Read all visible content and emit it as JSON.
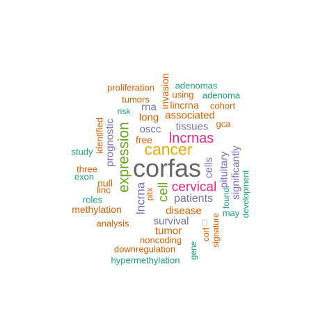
{
  "words": [
    {
      "text": "corfas",
      "color": "#666666"
    },
    {
      "text": "cancer",
      "color": "#e6ab02"
    },
    {
      "text": "lncrnas",
      "color": "#e7298a"
    },
    {
      "text": "cervical",
      "color": "#e7298a"
    },
    {
      "text": "expression",
      "color": "#66a61e"
    },
    {
      "text": "cell",
      "color": "#66a61e"
    },
    {
      "text": "lncrna",
      "color": "#7570b3"
    },
    {
      "text": "patients",
      "color": "#7570b3"
    },
    {
      "text": "survival",
      "color": "#7570b3"
    },
    {
      "text": "cells",
      "color": "#7570b3"
    },
    {
      "text": "pituitary",
      "color": "#7570b3"
    },
    {
      "text": "significantly",
      "color": "#7570b3"
    },
    {
      "text": "prognostic",
      "color": "#7570b3"
    },
    {
      "text": "tissues",
      "color": "#7570b3"
    },
    {
      "text": "oscc",
      "color": "#7570b3"
    },
    {
      "text": "rna",
      "color": "#7570b3"
    },
    {
      "text": "invasion",
      "color": "#d95f02"
    },
    {
      "text": "associated",
      "color": "#d95f02"
    },
    {
      "text": "disease",
      "color": "#d95f02"
    },
    {
      "text": "tumor",
      "color": "#d95f02"
    },
    {
      "text": "long",
      "color": "#d95f02"
    },
    {
      "text": "free",
      "color": "#d95f02"
    },
    {
      "text": "gca",
      "color": "#d95f02"
    },
    {
      "text": "lincrna",
      "color": "#d95f02"
    },
    {
      "text": "cohort",
      "color": "#d95f02"
    },
    {
      "text": "using",
      "color": "#d95f02"
    },
    {
      "text": "tumors",
      "color": "#d95f02"
    },
    {
      "text": "proliferation",
      "color": "#d95f02"
    },
    {
      "text": "identified",
      "color": "#d95f02"
    },
    {
      "text": "null",
      "color": "#d95f02"
    },
    {
      "text": "linc",
      "color": "#d95f02"
    },
    {
      "text": "three",
      "color": "#d95f02"
    },
    {
      "text": "methylation",
      "color": "#d95f02"
    },
    {
      "text": "analysis",
      "color": "#d95f02"
    },
    {
      "text": "noncoding",
      "color": "#d95f02"
    },
    {
      "text": "downregulation",
      "color": "#d95f02"
    },
    {
      "text": "pitx",
      "color": "#d95f02"
    },
    {
      "text": "signature",
      "color": "#d95f02"
    },
    {
      "text": "corf",
      "color": "#d95f02"
    },
    {
      "text": "adenomas",
      "color": "#1b9e77"
    },
    {
      "text": "adenoma",
      "color": "#1b9e77"
    },
    {
      "text": "risk",
      "color": "#1b9e77"
    },
    {
      "text": "study",
      "color": "#1b9e77"
    },
    {
      "text": "exon",
      "color": "#1b9e77"
    },
    {
      "text": "roles",
      "color": "#1b9e77"
    },
    {
      "text": "found",
      "color": "#1b9e77"
    },
    {
      "text": "may",
      "color": "#1b9e77"
    },
    {
      "text": "development",
      "color": "#1b9e77"
    },
    {
      "text": "gene",
      "color": "#1b9e77"
    },
    {
      "text": "hypermethylation",
      "color": "#1b9e77"
    }
  ]
}
